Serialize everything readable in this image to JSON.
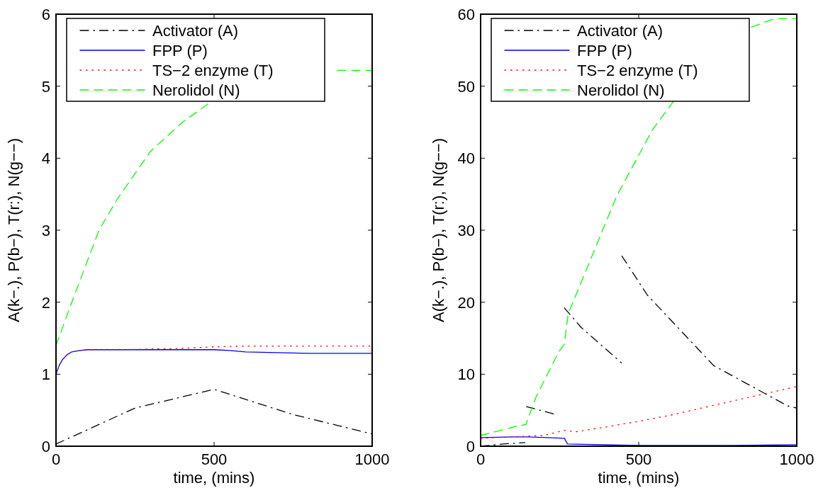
{
  "chart_data": [
    {
      "type": "line",
      "xlabel": "time, (mins)",
      "ylabel": "A(k−.), P(b−), T(r:), N(g−−)",
      "xlim": [
        0,
        1000
      ],
      "ylim": [
        0,
        6
      ],
      "xticks": [
        0,
        500,
        1000
      ],
      "yticks": [
        0,
        1,
        2,
        3,
        4,
        5,
        6
      ],
      "legend": "top left",
      "grid": false,
      "series": [
        {
          "name": "Activator (A)",
          "color": "#000000",
          "line_style": "dashdot",
          "x": [
            0,
            250,
            500,
            750,
            1000
          ],
          "values": [
            0.03,
            0.53,
            0.79,
            0.44,
            0.17
          ]
        },
        {
          "name": "FPP (P)",
          "color": "#0000ff",
          "line_style": "solid",
          "x": [
            0,
            10,
            20,
            35,
            50,
            75,
            100,
            200,
            300,
            400,
            500,
            550,
            600,
            700,
            800,
            1000
          ],
          "values": [
            1.0,
            1.12,
            1.2,
            1.27,
            1.31,
            1.33,
            1.34,
            1.34,
            1.34,
            1.34,
            1.34,
            1.33,
            1.31,
            1.3,
            1.29,
            1.29
          ]
        },
        {
          "name": "TS−2 enzyme (T)",
          "color": "#ff0000",
          "line_style": "dotted",
          "x": [
            0,
            10,
            20,
            35,
            50,
            75,
            100,
            200,
            300,
            400,
            500,
            600,
            700,
            800,
            1000
          ],
          "values": [
            1.0,
            1.12,
            1.2,
            1.27,
            1.31,
            1.33,
            1.34,
            1.34,
            1.35,
            1.36,
            1.38,
            1.39,
            1.39,
            1.39,
            1.39
          ]
        },
        {
          "name": "Nerolidol (N)",
          "color": "#00ff00",
          "line_style": "dashed",
          "x": [
            0,
            50,
            136,
            195,
            300,
            400,
            480,
            560,
            890,
            1000
          ],
          "values": [
            1.4,
            2.0,
            3.0,
            3.44,
            4.1,
            4.5,
            4.75,
            null,
            5.22,
            5.22
          ]
        }
      ]
    },
    {
      "type": "line",
      "xlabel": "time, (mins)",
      "ylabel": "A(k−.), P(b−), T(r:), N(g−−)",
      "xlim": [
        0,
        1000
      ],
      "ylim": [
        0,
        60
      ],
      "xticks": [
        0,
        500,
        1000
      ],
      "yticks": [
        0,
        10,
        20,
        30,
        40,
        50,
        60
      ],
      "legend": "top left",
      "grid": false,
      "series": [
        {
          "name": "Activator (A)",
          "color": "#000000",
          "line_style": "dashdot",
          "x": [
            0,
            70,
            140,
            142,
            145,
            238,
            250,
            265,
            318,
            445,
            446,
            447,
            527,
            737,
            971,
            1000
          ],
          "values": [
            0.0,
            0.3,
            0.5,
            null,
            5.5,
            4.4,
            null,
            19.2,
            16.5,
            11.6,
            null,
            26.4,
            21.0,
            11.2,
            5.6,
            5.3
          ]
        },
        {
          "name": "FPP (P)",
          "color": "#0000ff",
          "line_style": "solid",
          "x": [
            0,
            100,
            150,
            265,
            275,
            500,
            800,
            1000
          ],
          "values": [
            1.2,
            1.3,
            1.3,
            1.1,
            0.3,
            0.1,
            0.1,
            0.2
          ]
        },
        {
          "name": "TS−2 enzyme (T)",
          "color": "#ff0000",
          "line_style": "dotted",
          "x": [
            0,
            100,
            200,
            265,
            300,
            400,
            505,
            600,
            729,
            850,
            991,
            1000
          ],
          "values": [
            1.1,
            1.3,
            1.5,
            2.2,
            2.0,
            2.7,
            3.5,
            4.3,
            5.6,
            6.8,
            8.2,
            8.3
          ]
        },
        {
          "name": "Nerolidol (N)",
          "color": "#00ff00",
          "line_style": "dashed",
          "x": [
            0,
            115,
            143,
            176,
            247,
            265,
            277,
            311,
            430,
            543,
            610,
            700,
            857,
            930,
            1000
          ],
          "values": [
            1.5,
            2.8,
            3.0,
            6.9,
            13.1,
            14.2,
            18.4,
            22.0,
            34.7,
            43.9,
            47.9,
            null,
            58.2,
            59.4,
            59.4
          ]
        }
      ]
    }
  ]
}
